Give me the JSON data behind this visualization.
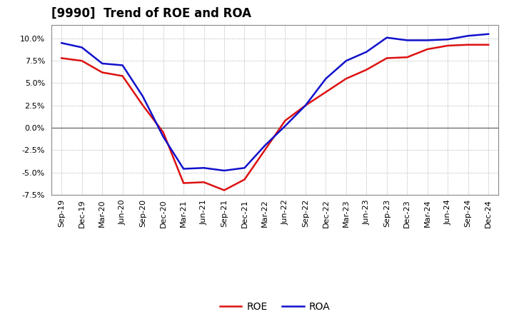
{
  "title": "[9990]  Trend of ROE and ROA",
  "x_labels": [
    "Sep-19",
    "Dec-19",
    "Mar-20",
    "Jun-20",
    "Sep-20",
    "Dec-20",
    "Mar-21",
    "Jun-21",
    "Sep-21",
    "Dec-21",
    "Mar-22",
    "Jun-22",
    "Sep-22",
    "Dec-22",
    "Mar-23",
    "Jun-23",
    "Sep-23",
    "Dec-23",
    "Mar-24",
    "Jun-24",
    "Sep-24",
    "Dec-24"
  ],
  "roe": [
    7.8,
    7.5,
    6.2,
    5.8,
    2.5,
    -0.5,
    -6.2,
    -6.1,
    -7.0,
    -5.8,
    -2.5,
    0.8,
    2.5,
    4.0,
    5.5,
    6.5,
    7.8,
    7.9,
    8.8,
    9.2,
    9.3,
    9.3
  ],
  "roa": [
    9.5,
    9.0,
    7.2,
    7.0,
    3.5,
    -1.0,
    -4.6,
    -4.5,
    -4.8,
    -4.5,
    -2.0,
    0.2,
    2.5,
    5.5,
    7.5,
    8.5,
    10.1,
    9.8,
    9.8,
    9.9,
    10.3,
    10.5
  ],
  "roe_color": "#dd1111",
  "roa_color": "#1111cc",
  "ylim": [
    -7.5,
    11.5
  ],
  "yticks": [
    -7.5,
    -5.0,
    -2.5,
    0.0,
    2.5,
    5.0,
    7.5,
    10.0
  ],
  "background_color": "#ffffff",
  "grid_color": "#aaaaaa",
  "title_fontsize": 12,
  "legend_fontsize": 10,
  "tick_fontsize": 8,
  "line_width": 1.8
}
